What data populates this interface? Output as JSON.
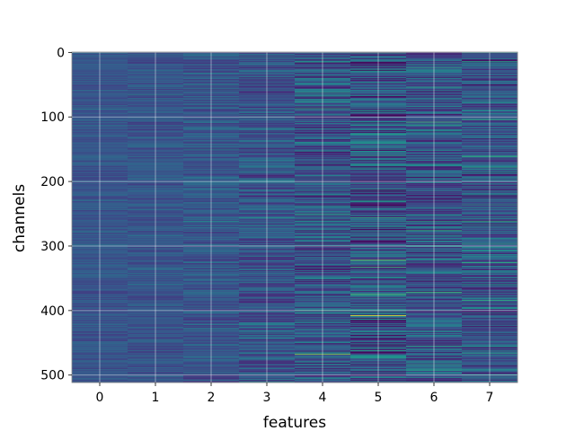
{
  "chart_data": {
    "type": "heatmap",
    "title": "",
    "xlabel": "features",
    "ylabel": "channels",
    "x_categories": [
      "0",
      "1",
      "2",
      "3",
      "4",
      "5",
      "6",
      "7"
    ],
    "x_tick_labels": [
      "0",
      "1",
      "2",
      "3",
      "4",
      "5",
      "6",
      "7"
    ],
    "y_tick_values": [
      0,
      100,
      200,
      300,
      400,
      500
    ],
    "y_tick_labels": [
      "0",
      "100",
      "200",
      "300",
      "400",
      "500"
    ],
    "ylim": [
      512,
      0
    ],
    "n_channels": 512,
    "n_features": 8,
    "grid": true,
    "colormap": "viridis",
    "background_color": "#3b4c8c",
    "feature_variability": [
      0.08,
      0.09,
      0.12,
      0.16,
      0.22,
      0.26,
      0.22,
      0.22
    ],
    "highlights": [
      {
        "feature": 0,
        "channel": 88,
        "value": 0.45
      },
      {
        "feature": 0,
        "channel": 478,
        "value": 0.42
      },
      {
        "feature": 1,
        "channel": 66,
        "value": 0.5
      },
      {
        "feature": 1,
        "channel": 360,
        "value": 0.42
      },
      {
        "feature": 2,
        "channel": 50,
        "value": 0.5
      },
      {
        "feature": 2,
        "channel": 262,
        "value": 0.5
      },
      {
        "feature": 2,
        "channel": 372,
        "value": 0.42
      },
      {
        "feature": 3,
        "channel": 100,
        "value": 0.5
      },
      {
        "feature": 3,
        "channel": 168,
        "value": 0.45
      },
      {
        "feature": 4,
        "channel": 62,
        "value": 0.6
      },
      {
        "feature": 4,
        "channel": 76,
        "value": 0.55
      },
      {
        "feature": 4,
        "channel": 252,
        "value": 0.55
      },
      {
        "feature": 4,
        "channel": 400,
        "value": 0.6
      },
      {
        "feature": 4,
        "channel": 468,
        "value": 0.85
      },
      {
        "feature": 5,
        "channel": 160,
        "value": 0.6
      },
      {
        "feature": 5,
        "channel": 212,
        "value": 0.55
      },
      {
        "feature": 5,
        "channel": 322,
        "value": 0.8
      },
      {
        "feature": 5,
        "channel": 408,
        "value": 1.0
      },
      {
        "feature": 5,
        "channel": 462,
        "value": 0.6
      },
      {
        "feature": 6,
        "channel": 54,
        "value": 0.6
      },
      {
        "feature": 6,
        "channel": 108,
        "value": 0.7
      },
      {
        "feature": 6,
        "channel": 262,
        "value": 0.6
      },
      {
        "feature": 6,
        "channel": 276,
        "value": 0.65
      },
      {
        "feature": 6,
        "channel": 372,
        "value": 0.7
      },
      {
        "feature": 6,
        "channel": 492,
        "value": 0.6
      },
      {
        "feature": 7,
        "channel": 14,
        "value": 0.6
      },
      {
        "feature": 7,
        "channel": 104,
        "value": 0.65
      },
      {
        "feature": 7,
        "channel": 178,
        "value": 0.6
      },
      {
        "feature": 7,
        "channel": 262,
        "value": 0.65
      },
      {
        "feature": 7,
        "channel": 326,
        "value": 0.65
      },
      {
        "feature": 7,
        "channel": 384,
        "value": 0.65
      },
      {
        "feature": 7,
        "channel": 466,
        "value": 0.6
      }
    ]
  }
}
